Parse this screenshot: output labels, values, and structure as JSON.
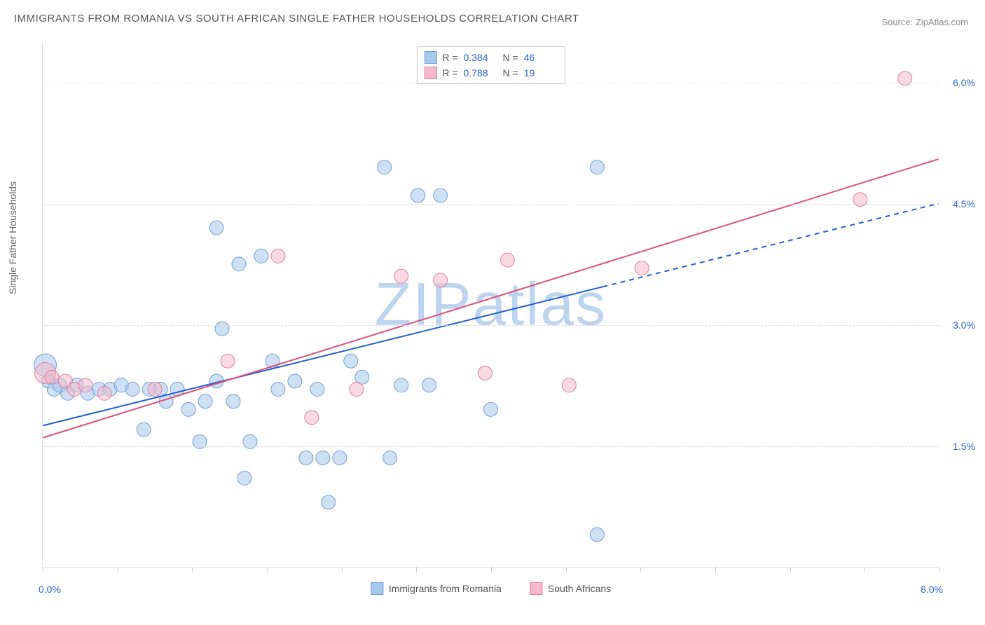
{
  "title": "IMMIGRANTS FROM ROMANIA VS SOUTH AFRICAN SINGLE FATHER HOUSEHOLDS CORRELATION CHART",
  "source": "Source: ZipAtlas.com",
  "watermark": "ZIPatlas",
  "chart": {
    "type": "scatter",
    "ylabel": "Single Father Households",
    "xlim": [
      0.0,
      8.0
    ],
    "ylim": [
      0.0,
      6.5
    ],
    "x_tick_labels": {
      "min": "0.0%",
      "max": "8.0%"
    },
    "x_ticks_at": [
      0.0,
      0.67,
      1.33,
      2.0,
      2.67,
      3.33,
      4.0,
      4.67,
      5.33,
      6.0,
      6.67,
      7.33,
      8.0
    ],
    "y_gridlines": [
      1.5,
      3.0,
      4.5,
      6.0
    ],
    "y_tick_labels": [
      "1.5%",
      "3.0%",
      "4.5%",
      "6.0%"
    ],
    "background_color": "#ffffff",
    "grid_color": "#dddddd",
    "border_color": "#e0e0e0",
    "watermark_color": "#bcd4ef",
    "axis_value_color": "#2962d9",
    "title_color": "#555555",
    "series": [
      {
        "name": "Immigrants from Romania",
        "fill": "#a8c7ec",
        "stroke": "#6fa0d8",
        "fill_opacity": 0.55,
        "marker_r": 10,
        "R": "0.384",
        "N": "46",
        "trend": {
          "x1": 0.0,
          "y1": 1.75,
          "x2": 8.0,
          "y2": 4.5,
          "solid_until_x": 5.0,
          "color": "#1f5fd0",
          "width": 2
        },
        "points": [
          {
            "x": 0.02,
            "y": 2.5,
            "r": 16
          },
          {
            "x": 0.05,
            "y": 2.3
          },
          {
            "x": 0.1,
            "y": 2.2
          },
          {
            "x": 0.15,
            "y": 2.25
          },
          {
            "x": 0.22,
            "y": 2.15
          },
          {
            "x": 0.3,
            "y": 2.25
          },
          {
            "x": 0.4,
            "y": 2.15
          },
          {
            "x": 0.5,
            "y": 2.2
          },
          {
            "x": 0.6,
            "y": 2.2
          },
          {
            "x": 0.7,
            "y": 2.25
          },
          {
            "x": 0.8,
            "y": 2.2
          },
          {
            "x": 0.9,
            "y": 1.7
          },
          {
            "x": 0.95,
            "y": 2.2
          },
          {
            "x": 1.05,
            "y": 2.2
          },
          {
            "x": 1.1,
            "y": 2.05
          },
          {
            "x": 1.2,
            "y": 2.2
          },
          {
            "x": 1.3,
            "y": 1.95
          },
          {
            "x": 1.4,
            "y": 1.55
          },
          {
            "x": 1.45,
            "y": 2.05
          },
          {
            "x": 1.55,
            "y": 2.3
          },
          {
            "x": 1.55,
            "y": 4.2
          },
          {
            "x": 1.6,
            "y": 2.95
          },
          {
            "x": 1.7,
            "y": 2.05
          },
          {
            "x": 1.75,
            "y": 3.75
          },
          {
            "x": 1.8,
            "y": 1.1
          },
          {
            "x": 1.85,
            "y": 1.55
          },
          {
            "x": 1.95,
            "y": 3.85
          },
          {
            "x": 2.05,
            "y": 2.55
          },
          {
            "x": 2.1,
            "y": 2.2
          },
          {
            "x": 2.25,
            "y": 2.3
          },
          {
            "x": 2.35,
            "y": 1.35
          },
          {
            "x": 2.45,
            "y": 2.2
          },
          {
            "x": 2.5,
            "y": 1.35
          },
          {
            "x": 2.55,
            "y": 0.8
          },
          {
            "x": 2.65,
            "y": 1.35
          },
          {
            "x": 2.75,
            "y": 2.55
          },
          {
            "x": 2.85,
            "y": 2.35
          },
          {
            "x": 3.05,
            "y": 4.95
          },
          {
            "x": 3.1,
            "y": 1.35
          },
          {
            "x": 3.2,
            "y": 2.25
          },
          {
            "x": 3.35,
            "y": 4.6
          },
          {
            "x": 3.45,
            "y": 2.25
          },
          {
            "x": 3.55,
            "y": 4.6
          },
          {
            "x": 4.0,
            "y": 1.95
          },
          {
            "x": 4.95,
            "y": 4.95
          },
          {
            "x": 4.95,
            "y": 0.4
          }
        ]
      },
      {
        "name": "South Africans",
        "fill": "#f4b9cb",
        "stroke": "#e07fa0",
        "fill_opacity": 0.55,
        "marker_r": 10,
        "R": "0.788",
        "N": "19",
        "trend": {
          "x1": 0.0,
          "y1": 1.6,
          "x2": 8.0,
          "y2": 5.05,
          "solid_until_x": 8.0,
          "color": "#e05078",
          "width": 2
        },
        "points": [
          {
            "x": 0.02,
            "y": 2.4,
            "r": 15
          },
          {
            "x": 0.08,
            "y": 2.35
          },
          {
            "x": 0.2,
            "y": 2.3
          },
          {
            "x": 0.28,
            "y": 2.2
          },
          {
            "x": 0.38,
            "y": 2.25
          },
          {
            "x": 0.55,
            "y": 2.15
          },
          {
            "x": 1.0,
            "y": 2.2
          },
          {
            "x": 1.65,
            "y": 2.55
          },
          {
            "x": 2.1,
            "y": 3.85
          },
          {
            "x": 2.4,
            "y": 1.85
          },
          {
            "x": 2.8,
            "y": 2.2
          },
          {
            "x": 3.2,
            "y": 3.6
          },
          {
            "x": 3.55,
            "y": 3.55
          },
          {
            "x": 3.95,
            "y": 2.4
          },
          {
            "x": 4.15,
            "y": 3.8
          },
          {
            "x": 4.7,
            "y": 2.25
          },
          {
            "x": 5.35,
            "y": 3.7
          },
          {
            "x": 7.3,
            "y": 4.55
          },
          {
            "x": 7.7,
            "y": 6.05
          }
        ]
      }
    ]
  }
}
